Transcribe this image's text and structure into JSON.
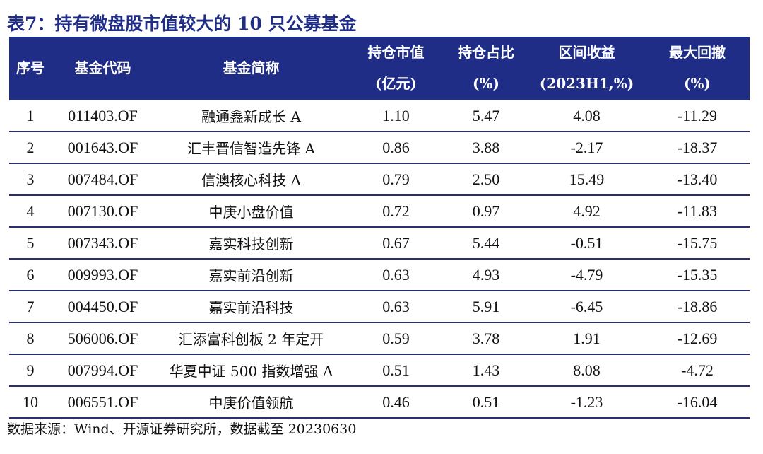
{
  "title": "表7：持有微盘股市值较大的 10 只公募基金",
  "headers": {
    "seq": "序号",
    "code": "基金代码",
    "name": "基金简称",
    "value_line1": "持仓市值",
    "value_line2": "(亿元)",
    "ratio_line1": "持仓占比",
    "ratio_line2": "(%)",
    "return_line1": "区间收益",
    "return_line2": "(2023H1,%)",
    "drawdown_line1": "最大回撤",
    "drawdown_line2": "(%)"
  },
  "rows": [
    {
      "seq": "1",
      "code": "011403.OF",
      "name": "融通鑫新成长 A",
      "value": "1.10",
      "ratio": "5.47",
      "ret": "4.08",
      "dd": "-11.29"
    },
    {
      "seq": "2",
      "code": "001643.OF",
      "name": "汇丰晋信智造先锋 A",
      "value": "0.86",
      "ratio": "3.88",
      "ret": "-2.17",
      "dd": "-18.37"
    },
    {
      "seq": "3",
      "code": "007484.OF",
      "name": "信澳核心科技 A",
      "value": "0.79",
      "ratio": "2.50",
      "ret": "15.49",
      "dd": "-13.40"
    },
    {
      "seq": "4",
      "code": "007130.OF",
      "name": "中庚小盘价值",
      "value": "0.72",
      "ratio": "0.97",
      "ret": "4.92",
      "dd": "-11.83"
    },
    {
      "seq": "5",
      "code": "007343.OF",
      "name": "嘉实科技创新",
      "value": "0.67",
      "ratio": "5.44",
      "ret": "-0.51",
      "dd": "-15.75"
    },
    {
      "seq": "6",
      "code": "009993.OF",
      "name": "嘉实前沿创新",
      "value": "0.63",
      "ratio": "4.93",
      "ret": "-4.79",
      "dd": "-15.35"
    },
    {
      "seq": "7",
      "code": "004450.OF",
      "name": "嘉实前沿科技",
      "value": "0.63",
      "ratio": "5.91",
      "ret": "-6.45",
      "dd": "-18.86"
    },
    {
      "seq": "8",
      "code": "506006.OF",
      "name": "汇添富科创板 2 年定开",
      "value": "0.59",
      "ratio": "3.78",
      "ret": "1.91",
      "dd": "-12.69"
    },
    {
      "seq": "9",
      "code": "007994.OF",
      "name": "华夏中证 500 指数增强 A",
      "value": "0.51",
      "ratio": "1.43",
      "ret": "8.08",
      "dd": "-4.72"
    },
    {
      "seq": "10",
      "code": "006551.OF",
      "name": "中庚价值领航",
      "value": "0.46",
      "ratio": "0.51",
      "ret": "-1.23",
      "dd": "-16.04"
    }
  ],
  "source": "数据来源：Wind、开源证券研究所，数据截至 20230630"
}
